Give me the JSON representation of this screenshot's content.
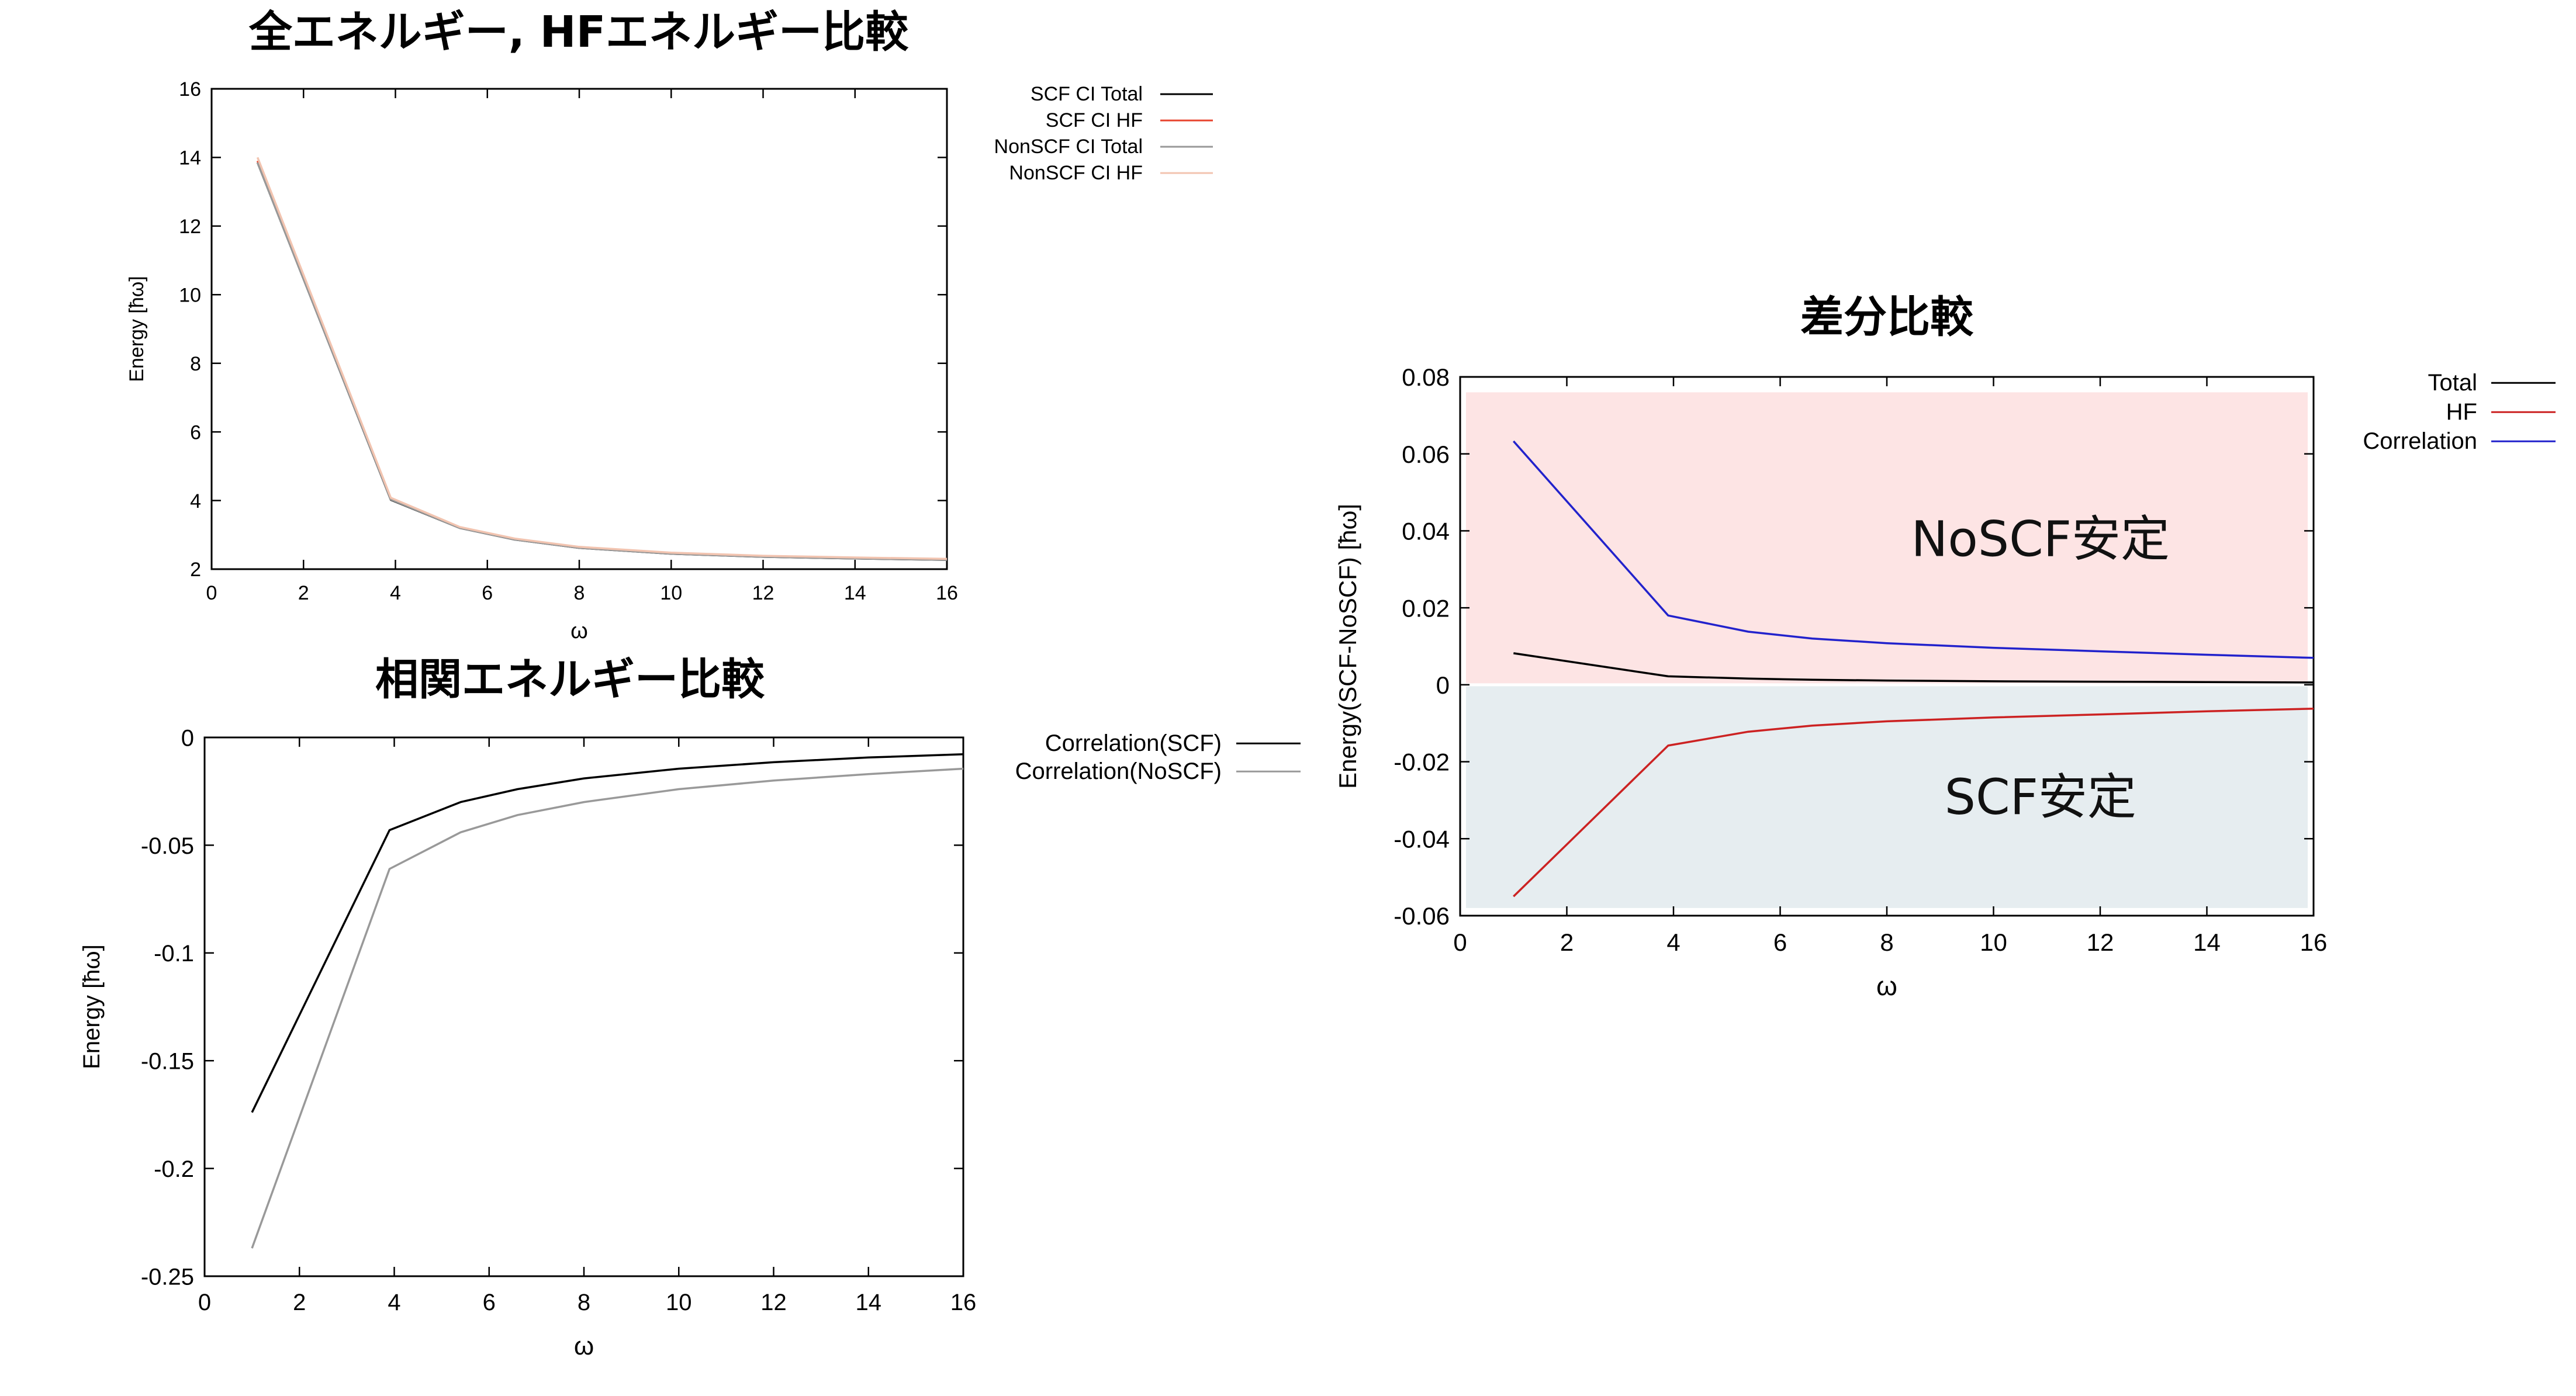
{
  "chart_data": [
    {
      "type": "line",
      "title": "全エネルギー, HFエネルギー比較",
      "xlabel": "ω",
      "ylabel": "Energy [ħω]",
      "xlim": [
        0,
        16
      ],
      "ylim": [
        2,
        16
      ],
      "xticks": [
        0,
        2,
        4,
        6,
        8,
        10,
        12,
        14,
        16
      ],
      "yticks": [
        2,
        4,
        6,
        8,
        10,
        12,
        14,
        16
      ],
      "legend": "outside-top-right",
      "series": [
        {
          "name": "SCF CI Total",
          "color": "#000000",
          "x": [
            1,
            3.9,
            5.4,
            6.6,
            8,
            10,
            12,
            14,
            16
          ],
          "y": [
            13.85,
            4.02,
            3.2,
            2.86,
            2.62,
            2.45,
            2.36,
            2.31,
            2.27
          ]
        },
        {
          "name": "SCF CI HF",
          "color": "#e8442e",
          "x": [
            1,
            3.9,
            5.4,
            6.6,
            8,
            10,
            12,
            14,
            16
          ],
          "y": [
            13.9,
            4.06,
            3.22,
            2.88,
            2.64,
            2.47,
            2.38,
            2.33,
            2.29
          ]
        },
        {
          "name": "NonSCF CI Total",
          "color": "#999999",
          "x": [
            1,
            3.9,
            5.4,
            6.6,
            8,
            10,
            12,
            14,
            16
          ],
          "y": [
            13.85,
            4.03,
            3.2,
            2.86,
            2.62,
            2.45,
            2.36,
            2.31,
            2.27
          ]
        },
        {
          "name": "NonSCF CI HF",
          "color": "#f2c4b0",
          "x": [
            1,
            3.9,
            5.4,
            6.6,
            8,
            10,
            12,
            14,
            16
          ],
          "y": [
            14.0,
            4.08,
            3.23,
            2.89,
            2.65,
            2.48,
            2.39,
            2.34,
            2.3
          ]
        }
      ]
    },
    {
      "type": "line",
      "title": "相関エネルギー比較",
      "xlabel": "ω",
      "ylabel": "Energy [ħω]",
      "xlim": [
        0,
        16
      ],
      "ylim": [
        -0.25,
        0
      ],
      "xticks": [
        0,
        2,
        4,
        6,
        8,
        10,
        12,
        14,
        16
      ],
      "yticks": [
        0,
        -0.05,
        -0.1,
        -0.15,
        -0.2,
        -0.25
      ],
      "legend": "outside-top-right",
      "series": [
        {
          "name": "Correlation(SCF)",
          "color": "#000000",
          "x": [
            1,
            3.9,
            5.4,
            6.6,
            8,
            10,
            12,
            14,
            16
          ],
          "y": [
            -0.174,
            -0.043,
            -0.03,
            -0.024,
            -0.019,
            -0.0145,
            -0.0115,
            -0.0093,
            -0.0078
          ]
        },
        {
          "name": "Correlation(NoSCF)",
          "color": "#999999",
          "x": [
            1,
            3.9,
            5.4,
            6.6,
            8,
            10,
            12,
            14,
            16
          ],
          "y": [
            -0.237,
            -0.061,
            -0.044,
            -0.036,
            -0.03,
            -0.024,
            -0.02,
            -0.017,
            -0.0145
          ]
        }
      ]
    },
    {
      "type": "line",
      "title": "差分比較",
      "xlabel": "ω",
      "ylabel": "Energy(SCF-NoSCF) [ħω]",
      "xlim": [
        0,
        16
      ],
      "ylim": [
        -0.06,
        0.08
      ],
      "xticks": [
        0,
        2,
        4,
        6,
        8,
        10,
        12,
        14,
        16
      ],
      "yticks": [
        0.08,
        0.06,
        0.04,
        0.02,
        0,
        -0.02,
        -0.04,
        -0.06
      ],
      "legend": "outside-top-right",
      "regions": [
        {
          "label": "NoSCF安定",
          "y_from": 0,
          "y_to": 0.076,
          "color": "#fde4e4"
        },
        {
          "label": "SCF安定",
          "y_from": -0.058,
          "y_to": 0,
          "color": "#e6edf0"
        }
      ],
      "series": [
        {
          "name": "Total",
          "color": "#000000",
          "x": [
            1,
            3.9,
            5.4,
            6.6,
            8,
            10,
            12,
            14,
            16
          ],
          "y": [
            0.0082,
            0.0022,
            0.0016,
            0.0013,
            0.0011,
            0.0009,
            0.0008,
            0.0007,
            0.0006
          ]
        },
        {
          "name": "HF",
          "color": "#cc2222",
          "x": [
            1,
            3.9,
            5.4,
            6.6,
            8,
            10,
            12,
            14,
            16
          ],
          "y": [
            -0.055,
            -0.0158,
            -0.0122,
            -0.0106,
            -0.0095,
            -0.0085,
            -0.0077,
            -0.0069,
            -0.0062
          ]
        },
        {
          "name": "Correlation",
          "color": "#2222cc",
          "x": [
            1,
            3.9,
            5.4,
            6.6,
            8,
            10,
            12,
            14,
            16
          ],
          "y": [
            0.0633,
            0.018,
            0.0138,
            0.012,
            0.0108,
            0.0096,
            0.0087,
            0.0078,
            0.007
          ]
        }
      ]
    }
  ]
}
